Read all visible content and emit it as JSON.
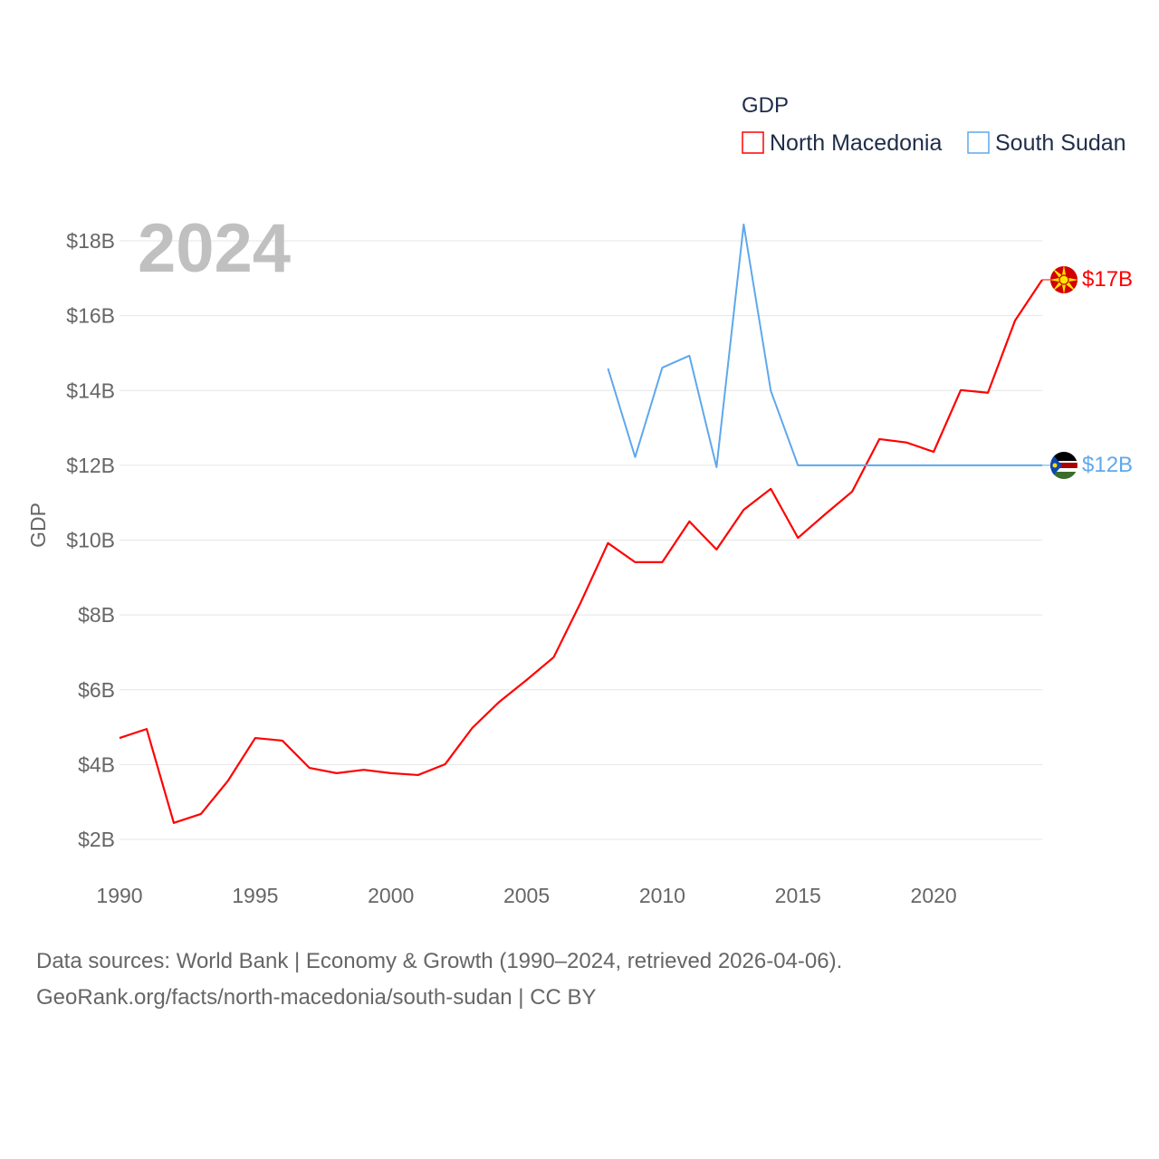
{
  "chart_data": {
    "type": "line",
    "title": "GDP",
    "year_label": "2024",
    "ylabel": "GDP",
    "xlabel": "",
    "xlim": [
      1990,
      2024
    ],
    "ylim": [
      2,
      18
    ],
    "x_ticks": [
      1990,
      1995,
      2000,
      2005,
      2010,
      2015,
      2020
    ],
    "y_ticks": [
      2,
      4,
      6,
      8,
      10,
      12,
      14,
      16,
      18
    ],
    "y_tick_labels": [
      "$2B",
      "$4B",
      "$6B",
      "$8B",
      "$10B",
      "$12B",
      "$14B",
      "$16B",
      "$18B"
    ],
    "grid": true,
    "legend_position": "top-right",
    "series": [
      {
        "name": "North Macedonia",
        "color": "#ff0000",
        "end_label": "$17B",
        "flag_icon": "north-macedonia-flag-icon",
        "x": [
          1990,
          1991,
          1992,
          1993,
          1994,
          1995,
          1996,
          1997,
          1998,
          1999,
          2000,
          2001,
          2002,
          2003,
          2004,
          2005,
          2006,
          2007,
          2008,
          2009,
          2010,
          2011,
          2012,
          2013,
          2014,
          2015,
          2016,
          2017,
          2018,
          2019,
          2020,
          2021,
          2022,
          2023,
          2024
        ],
        "values": [
          4.71,
          4.95,
          2.44,
          2.68,
          3.57,
          4.71,
          4.64,
          3.91,
          3.77,
          3.86,
          3.77,
          3.72,
          4.01,
          4.98,
          5.68,
          6.26,
          6.87,
          8.34,
          9.92,
          9.41,
          9.41,
          10.5,
          9.75,
          10.81,
          11.37,
          10.06,
          10.69,
          11.3,
          12.7,
          12.61,
          12.36,
          14.01,
          13.94,
          15.87,
          16.96
        ]
      },
      {
        "name": "South Sudan",
        "color": "#5ea8ec",
        "end_label": "$12B",
        "flag_icon": "south-sudan-flag-icon",
        "x": [
          2008,
          2009,
          2010,
          2011,
          2012,
          2013,
          2014,
          2015,
          2016,
          2017,
          2018,
          2019,
          2020,
          2021,
          2022,
          2023,
          2024
        ],
        "values": [
          14.59,
          12.22,
          14.61,
          14.93,
          11.95,
          18.44,
          13.99,
          12.0,
          12.0,
          12.0,
          12.0,
          12.0,
          12.0,
          12.0,
          12.0,
          12.0,
          12.0
        ]
      }
    ]
  },
  "footer": {
    "line1": "Data sources: World Bank | Economy & Growth (1990–2024, retrieved 2026-04-06).",
    "line2": "GeoRank.org/facts/north-macedonia/south-sudan | CC BY"
  }
}
